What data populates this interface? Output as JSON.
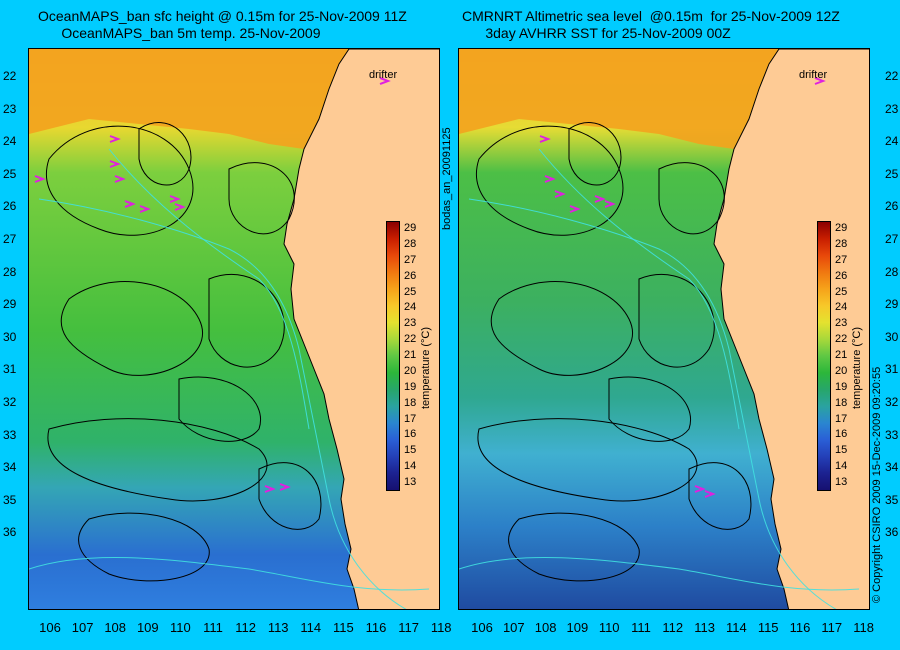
{
  "panels": [
    {
      "title_line1": "OceanMAPS_ban sfc height @ 0.15m for 25-Nov-2009 11Z",
      "title_line2": "OceanMAPS_ban 5m temp. 25-Nov-2009"
    },
    {
      "title_line1": "CMRNRT Altimetric sea level  @0.15m  for 25-Nov-2009 12Z",
      "title_line2": "3day AVHRR SST for 25-Nov-2009 00Z"
    }
  ],
  "drifter_label": "drifter",
  "lat_labels": [
    "22",
    "23",
    "24",
    "25",
    "26",
    "27",
    "28",
    "29",
    "30",
    "31",
    "32",
    "33",
    "34",
    "35",
    "36"
  ],
  "lon_labels": [
    "106",
    "107",
    "108",
    "109",
    "110",
    "111",
    "112",
    "113",
    "114",
    "115",
    "116",
    "117",
    "118"
  ],
  "colorbar": {
    "ticks": [
      "29",
      "28",
      "27",
      "26",
      "25",
      "24",
      "23",
      "22",
      "21",
      "20",
      "19",
      "18",
      "17",
      "16",
      "15",
      "14",
      "13"
    ],
    "label": "temperature (°C)",
    "colors": [
      "#8b0000",
      "#c81e00",
      "#e8480a",
      "#f07810",
      "#f6a31a",
      "#f7c829",
      "#e4e22f",
      "#a8d83a",
      "#5fc844",
      "#2cb73a",
      "#27a66a",
      "#2aa3a0",
      "#2a86d0",
      "#2a5fd6",
      "#2440b8",
      "#1c2290",
      "#161070"
    ]
  },
  "side_text": "bodas_an_20091125",
  "copyright": "© Copyright CSIRO 2009  15-Dec-2009 09:20:55",
  "colors": {
    "background": "#00ccff",
    "land": "#fecb95",
    "drifter": "#e020e0",
    "track": "#40e0e0",
    "contour": "#000000"
  }
}
